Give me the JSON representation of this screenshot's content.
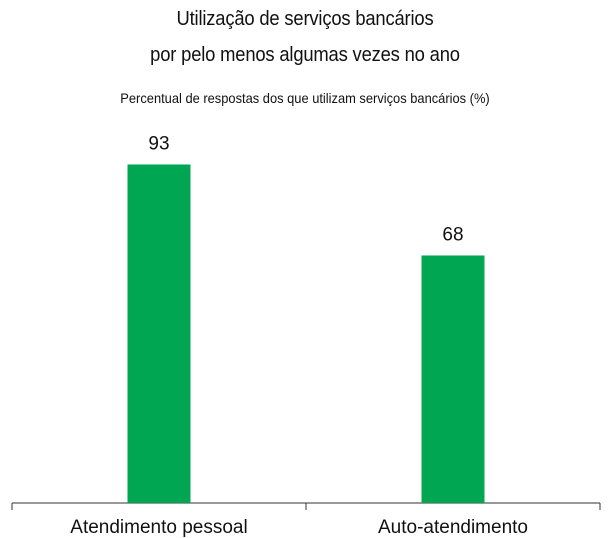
{
  "chart_data": {
    "type": "bar",
    "title_lines": [
      "Utilização de serviços bancários",
      "por pelo menos algumas vezes no ano"
    ],
    "subtitle": "Percentual de respostas dos que utilizam serviços bancários (%)",
    "categories": [
      "Atendimento pessoal",
      "Auto-atendimento"
    ],
    "values": [
      93,
      68
    ],
    "data_labels": [
      "93",
      "68"
    ],
    "bar_color": "#00a651",
    "ylim": [
      0,
      100
    ],
    "grid": false,
    "legend": "none"
  }
}
